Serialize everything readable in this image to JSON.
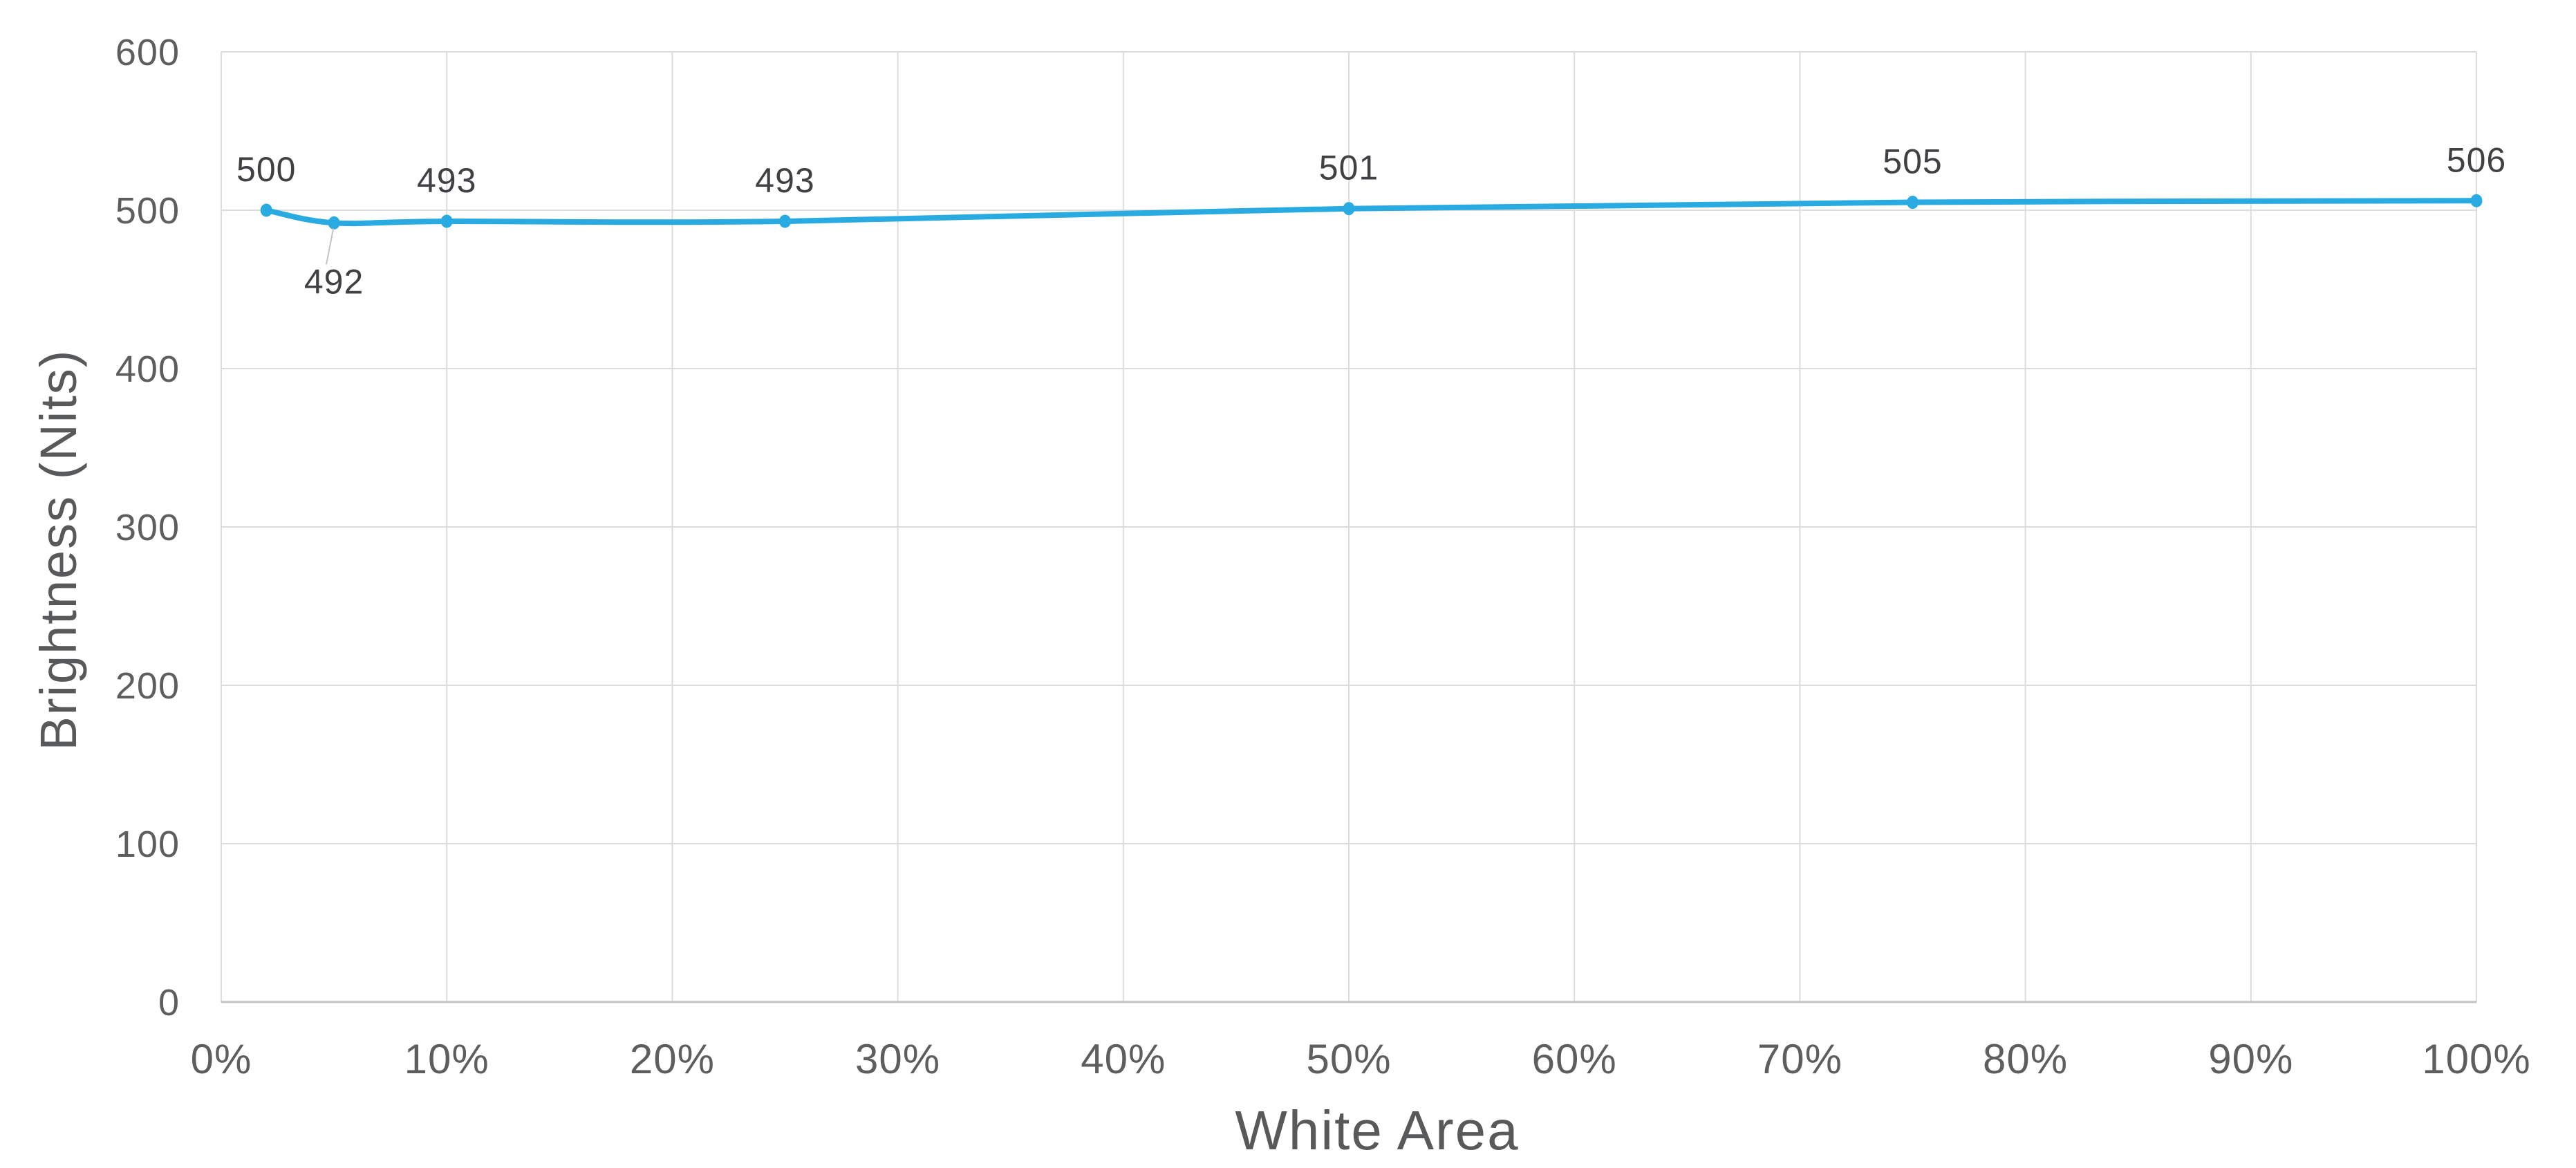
{
  "page": {
    "background": "#ffffff"
  },
  "chart_data": {
    "type": "line",
    "title": "",
    "xlabel": "White Area",
    "ylabel": "Brightness (Nits)",
    "xlim": [
      0,
      100
    ],
    "ylim": [
      0,
      600
    ],
    "grid": true,
    "legend": "none",
    "x_ticks": [
      {
        "value": 0,
        "label": "0%"
      },
      {
        "value": 10,
        "label": "10%"
      },
      {
        "value": 20,
        "label": "20%"
      },
      {
        "value": 30,
        "label": "30%"
      },
      {
        "value": 40,
        "label": "40%"
      },
      {
        "value": 50,
        "label": "50%"
      },
      {
        "value": 60,
        "label": "60%"
      },
      {
        "value": 70,
        "label": "70%"
      },
      {
        "value": 80,
        "label": "80%"
      },
      {
        "value": 90,
        "label": "90%"
      },
      {
        "value": 100,
        "label": "100%"
      }
    ],
    "y_ticks": [
      {
        "value": 0,
        "label": "0"
      },
      {
        "value": 100,
        "label": "100"
      },
      {
        "value": 200,
        "label": "200"
      },
      {
        "value": 300,
        "label": "300"
      },
      {
        "value": 400,
        "label": "400"
      },
      {
        "value": 500,
        "label": "500"
      },
      {
        "value": 600,
        "label": "600"
      }
    ],
    "series": [
      {
        "name": "Brightness",
        "color": "#29abe2",
        "points": [
          {
            "x": 2,
            "y": 500,
            "label": "500",
            "label_position": "above"
          },
          {
            "x": 5,
            "y": 492,
            "label": "492",
            "label_position": "below",
            "leader_line": true
          },
          {
            "x": 10,
            "y": 493,
            "label": "493",
            "label_position": "above"
          },
          {
            "x": 25,
            "y": 493,
            "label": "493",
            "label_position": "above"
          },
          {
            "x": 50,
            "y": 501,
            "label": "501",
            "label_position": "above"
          },
          {
            "x": 75,
            "y": 505,
            "label": "505",
            "label_position": "above"
          },
          {
            "x": 100,
            "y": 506,
            "label": "506",
            "label_position": "above"
          }
        ]
      }
    ],
    "style_colors": {
      "line": "#29abe2",
      "marker": "#29abe2",
      "gridline": "#dcdcdc",
      "axis_line": "#c2c2c2",
      "leader_line": "#c4c4c4",
      "tick_text": "#5d5e60",
      "data_label_text": "#404144",
      "axis_title_text": "#58595b"
    }
  }
}
